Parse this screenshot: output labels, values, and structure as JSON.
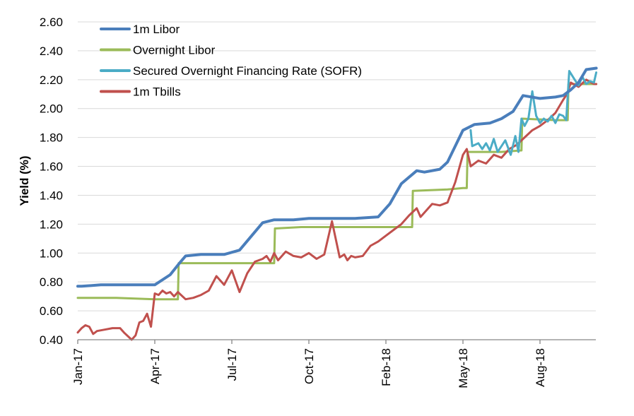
{
  "chart_data": {
    "type": "line",
    "title": "",
    "xlabel": "",
    "ylabel": "Yield (%)",
    "ylim": [
      0.4,
      2.6
    ],
    "yticks": [
      "0.40",
      "0.60",
      "0.80",
      "1.00",
      "1.20",
      "1.40",
      "1.60",
      "1.80",
      "2.00",
      "2.20",
      "2.40",
      "2.60"
    ],
    "ytick_values": [
      0.4,
      0.6,
      0.8,
      1.0,
      1.2,
      1.4,
      1.6,
      1.8,
      2.0,
      2.2,
      2.4,
      2.6
    ],
    "x_ticks": [
      "Jan-17",
      "Apr-17",
      "Jul-17",
      "Oct-17",
      "Feb-18",
      "May-18",
      "Aug-18"
    ],
    "x_unit_note": "x values are positions in tick intervals (0 = Jan-17, 1 = Apr-17, ... 6 = Aug-18)",
    "xlim": [
      0,
      6.75
    ],
    "grid": "horizontal",
    "legend_position": "top-left",
    "series": [
      {
        "name": "1m Libor",
        "color": "#4a7ebb",
        "x": [
          0,
          0.05,
          0.3,
          0.6,
          1.0,
          1.2,
          1.32,
          1.4,
          1.6,
          1.9,
          2.1,
          2.4,
          2.55,
          2.6,
          2.8,
          3.0,
          3.3,
          3.6,
          3.9,
          4.05,
          4.2,
          4.4,
          4.5,
          4.7,
          4.8,
          5.0,
          5.15,
          5.35,
          5.5,
          5.65,
          5.78,
          6.0,
          6.2,
          6.3,
          6.4,
          6.5,
          6.6,
          6.73
        ],
        "values": [
          0.77,
          0.77,
          0.78,
          0.78,
          0.78,
          0.85,
          0.93,
          0.98,
          0.99,
          0.99,
          1.02,
          1.21,
          1.23,
          1.23,
          1.23,
          1.24,
          1.24,
          1.24,
          1.25,
          1.34,
          1.48,
          1.57,
          1.56,
          1.58,
          1.63,
          1.85,
          1.89,
          1.9,
          1.93,
          1.98,
          2.09,
          2.07,
          2.08,
          2.09,
          2.13,
          2.18,
          2.27,
          2.28
        ]
      },
      {
        "name": "Overnight Libor",
        "color": "#9bbb59",
        "x": [
          0,
          0.5,
          1.0,
          1.3,
          1.31,
          1.6,
          2.0,
          2.4,
          2.55,
          2.56,
          2.9,
          3.3,
          3.7,
          4.0,
          4.3,
          4.34,
          4.35,
          4.8,
          5.0,
          5.05,
          5.06,
          5.5,
          5.75,
          5.76,
          5.77,
          6.2,
          6.36,
          6.37,
          6.73
        ],
        "values": [
          0.69,
          0.69,
          0.68,
          0.68,
          0.93,
          0.93,
          0.93,
          0.93,
          0.93,
          1.17,
          1.18,
          1.18,
          1.18,
          1.18,
          1.18,
          1.18,
          1.43,
          1.44,
          1.45,
          1.45,
          1.7,
          1.7,
          1.71,
          1.71,
          1.93,
          1.92,
          1.92,
          2.17,
          2.17
        ]
      },
      {
        "name": "Secured Overnight Financing Rate (SOFR)",
        "color": "#4bacc6",
        "x": [
          5.1,
          5.12,
          5.2,
          5.25,
          5.3,
          5.35,
          5.4,
          5.45,
          5.5,
          5.55,
          5.62,
          5.68,
          5.72,
          5.76,
          5.8,
          5.85,
          5.9,
          5.95,
          6.0,
          6.05,
          6.1,
          6.15,
          6.2,
          6.25,
          6.3,
          6.34,
          6.38,
          6.45,
          6.5,
          6.55,
          6.6,
          6.65,
          6.7,
          6.73
        ],
        "values": [
          1.85,
          1.74,
          1.76,
          1.72,
          1.76,
          1.71,
          1.79,
          1.7,
          1.74,
          1.78,
          1.68,
          1.81,
          1.7,
          1.93,
          1.88,
          1.93,
          2.12,
          1.95,
          1.9,
          1.93,
          1.91,
          1.95,
          1.9,
          1.96,
          1.95,
          1.92,
          2.26,
          2.2,
          2.16,
          2.22,
          2.17,
          2.19,
          2.18,
          2.25
        ]
      },
      {
        "name": "1m Tbills",
        "color": "#c0504d",
        "x": [
          0,
          0.05,
          0.1,
          0.15,
          0.2,
          0.25,
          0.35,
          0.45,
          0.55,
          0.6,
          0.7,
          0.75,
          0.8,
          0.85,
          0.9,
          0.95,
          1.0,
          1.05,
          1.1,
          1.15,
          1.2,
          1.25,
          1.3,
          1.4,
          1.5,
          1.6,
          1.7,
          1.8,
          1.9,
          2.0,
          2.1,
          2.2,
          2.3,
          2.4,
          2.45,
          2.5,
          2.55,
          2.6,
          2.7,
          2.8,
          2.9,
          3.0,
          3.1,
          3.2,
          3.3,
          3.4,
          3.46,
          3.5,
          3.55,
          3.6,
          3.7,
          3.8,
          3.9,
          4.0,
          4.1,
          4.2,
          4.3,
          4.4,
          4.45,
          4.5,
          4.6,
          4.7,
          4.8,
          4.85,
          4.9,
          5.0,
          5.05,
          5.1,
          5.2,
          5.3,
          5.4,
          5.5,
          5.6,
          5.7,
          5.8,
          5.9,
          6.0,
          6.1,
          6.2,
          6.3,
          6.35,
          6.4,
          6.5,
          6.6,
          6.7,
          6.73
        ],
        "values": [
          0.45,
          0.48,
          0.5,
          0.49,
          0.44,
          0.46,
          0.47,
          0.48,
          0.48,
          0.45,
          0.4,
          0.43,
          0.52,
          0.53,
          0.58,
          0.49,
          0.72,
          0.71,
          0.74,
          0.72,
          0.73,
          0.7,
          0.73,
          0.68,
          0.69,
          0.71,
          0.74,
          0.84,
          0.78,
          0.88,
          0.73,
          0.86,
          0.94,
          0.96,
          0.98,
          0.94,
          1.0,
          0.95,
          1.01,
          0.98,
          0.97,
          1.0,
          0.96,
          0.99,
          1.22,
          0.97,
          0.99,
          0.95,
          0.98,
          0.97,
          0.98,
          1.05,
          1.08,
          1.12,
          1.16,
          1.2,
          1.26,
          1.31,
          1.25,
          1.28,
          1.34,
          1.33,
          1.35,
          1.42,
          1.49,
          1.68,
          1.72,
          1.6,
          1.64,
          1.62,
          1.68,
          1.66,
          1.72,
          1.75,
          1.8,
          1.85,
          1.88,
          1.92,
          1.97,
          2.06,
          2.1,
          2.18,
          2.15,
          2.2,
          2.17,
          2.17
        ]
      }
    ]
  }
}
